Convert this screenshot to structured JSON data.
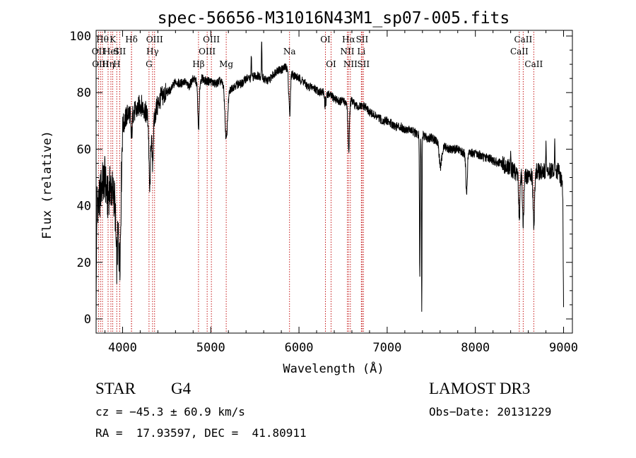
{
  "chart_data": {
    "type": "line",
    "title": "spec-56656-M31016N43M1_sp07-005.fits",
    "xlabel": "Wavelength (Å)",
    "ylabel": "Flux (relative)",
    "xlim": [
      3700,
      9100
    ],
    "ylim": [
      -5,
      102
    ],
    "x_ticks": [
      4000,
      5000,
      6000,
      7000,
      8000,
      9000
    ],
    "y_ticks": [
      0,
      20,
      40,
      60,
      80,
      100
    ],
    "spectrum_anchors": [
      [
        3700,
        45
      ],
      [
        3730,
        40
      ],
      [
        3760,
        47
      ],
      [
        3800,
        50
      ],
      [
        3830,
        42
      ],
      [
        3860,
        47
      ],
      [
        3900,
        44
      ],
      [
        3930,
        40
      ],
      [
        3960,
        40
      ],
      [
        3980,
        46
      ],
      [
        4000,
        68
      ],
      [
        4050,
        72
      ],
      [
        4100,
        74
      ],
      [
        4150,
        73
      ],
      [
        4200,
        76
      ],
      [
        4250,
        74
      ],
      [
        4300,
        70
      ],
      [
        4340,
        67
      ],
      [
        4380,
        74
      ],
      [
        4430,
        78
      ],
      [
        4500,
        80
      ],
      [
        4550,
        81
      ],
      [
        4600,
        84
      ],
      [
        4650,
        83
      ],
      [
        4700,
        84
      ],
      [
        4750,
        82
      ],
      [
        4800,
        85
      ],
      [
        4860,
        83
      ],
      [
        4900,
        85
      ],
      [
        4950,
        84
      ],
      [
        5000,
        84
      ],
      [
        5050,
        83
      ],
      [
        5100,
        84
      ],
      [
        5150,
        83
      ],
      [
        5200,
        80
      ],
      [
        5250,
        82
      ],
      [
        5300,
        83
      ],
      [
        5350,
        83
      ],
      [
        5400,
        85
      ],
      [
        5450,
        85
      ],
      [
        5500,
        86
      ],
      [
        5550,
        86
      ],
      [
        5600,
        85
      ],
      [
        5650,
        84
      ],
      [
        5700,
        86
      ],
      [
        5750,
        88
      ],
      [
        5800,
        88
      ],
      [
        5850,
        89
      ],
      [
        5900,
        87
      ],
      [
        5950,
        86
      ],
      [
        6000,
        85
      ],
      [
        6050,
        84
      ],
      [
        6100,
        82
      ],
      [
        6150,
        82
      ],
      [
        6200,
        81
      ],
      [
        6250,
        80
      ],
      [
        6300,
        80
      ],
      [
        6350,
        79
      ],
      [
        6400,
        78
      ],
      [
        6450,
        77
      ],
      [
        6500,
        77
      ],
      [
        6560,
        76
      ],
      [
        6600,
        77
      ],
      [
        6650,
        75
      ],
      [
        6700,
        75
      ],
      [
        6750,
        75
      ],
      [
        6800,
        73
      ],
      [
        6850,
        72
      ],
      [
        6900,
        71
      ],
      [
        6950,
        70
      ],
      [
        7000,
        70
      ],
      [
        7050,
        69
      ],
      [
        7100,
        68
      ],
      [
        7150,
        68
      ],
      [
        7200,
        67
      ],
      [
        7250,
        67
      ],
      [
        7300,
        66
      ],
      [
        7350,
        65
      ],
      [
        7400,
        65
      ],
      [
        7450,
        64
      ],
      [
        7500,
        64
      ],
      [
        7550,
        63
      ],
      [
        7600,
        62
      ],
      [
        7650,
        61
      ],
      [
        7700,
        60
      ],
      [
        7750,
        60
      ],
      [
        7800,
        60
      ],
      [
        7850,
        59
      ],
      [
        7900,
        58
      ],
      [
        7950,
        59
      ],
      [
        8000,
        58
      ],
      [
        8050,
        58
      ],
      [
        8100,
        57
      ],
      [
        8150,
        57
      ],
      [
        8200,
        56
      ],
      [
        8250,
        55
      ],
      [
        8300,
        55
      ],
      [
        8350,
        54
      ],
      [
        8400,
        53
      ],
      [
        8450,
        52
      ],
      [
        8500,
        52
      ],
      [
        8550,
        51
      ],
      [
        8600,
        50
      ],
      [
        8650,
        51
      ],
      [
        8700,
        52
      ],
      [
        8750,
        52
      ],
      [
        8800,
        52
      ],
      [
        8850,
        52
      ],
      [
        8900,
        53
      ],
      [
        8950,
        52
      ],
      [
        8980,
        48
      ],
      [
        9000,
        44
      ]
    ],
    "absorption_features": [
      {
        "wl": 3700,
        "depth": 42,
        "width": 4
      },
      {
        "wl": 3934,
        "depth": 20,
        "width": 10
      },
      {
        "wl": 3968,
        "depth": 22,
        "width": 10
      },
      {
        "wl": 4101,
        "depth": 10,
        "width": 8
      },
      {
        "wl": 4308,
        "depth": 24,
        "width": 8
      },
      {
        "wl": 4340,
        "depth": 12,
        "width": 8
      },
      {
        "wl": 4861,
        "depth": 16,
        "width": 8
      },
      {
        "wl": 5175,
        "depth": 18,
        "width": 14
      },
      {
        "wl": 5893,
        "depth": 20,
        "width": 8
      },
      {
        "wl": 6300,
        "depth": 10,
        "width": 6
      },
      {
        "wl": 6563,
        "depth": 17,
        "width": 8
      },
      {
        "wl": 7370,
        "depth": 50,
        "width": 4
      },
      {
        "wl": 7392,
        "depth": 64,
        "width": 3
      },
      {
        "wl": 7605,
        "depth": 8,
        "width": 14
      },
      {
        "wl": 7900,
        "depth": 14,
        "width": 8
      },
      {
        "wl": 8498,
        "depth": 16,
        "width": 8
      },
      {
        "wl": 8542,
        "depth": 18,
        "width": 8
      },
      {
        "wl": 8662,
        "depth": 18,
        "width": 8
      },
      {
        "wl": 9000,
        "depth": 40,
        "width": 4
      }
    ],
    "emission_features": [
      {
        "wl": 5577,
        "height": 14,
        "width": 3
      },
      {
        "wl": 5890,
        "height": 8,
        "width": 4
      },
      {
        "wl": 6300,
        "height": 8,
        "width": 3
      },
      {
        "wl": 5460,
        "height": 8,
        "width": 3
      },
      {
        "wl": 8400,
        "height": 8,
        "width": 3
      },
      {
        "wl": 8800,
        "height": 10,
        "width": 3
      },
      {
        "wl": 8900,
        "height": 8,
        "width": 3
      }
    ],
    "line_markers": [
      {
        "wl": 3727,
        "label": "OII",
        "row": 1
      },
      {
        "wl": 3750,
        "label": "OIII",
        "row": 2
      },
      {
        "wl": 3772,
        "label": "Hθ",
        "row": 0
      },
      {
        "wl": 3836,
        "label": "Hη",
        "row": 2
      },
      {
        "wl": 3868,
        "label": "HeI",
        "row": 1
      },
      {
        "wl": 3889,
        "label": "K",
        "row": 0
      },
      {
        "wl": 3934,
        "label": "H",
        "row": 2
      },
      {
        "wl": 3968,
        "label": "SII",
        "row": 1
      },
      {
        "wl": 4101,
        "label": "Hδ",
        "row": 0
      },
      {
        "wl": 4102,
        "label": "",
        "row": 0
      },
      {
        "wl": 4300,
        "label": "G",
        "row": 2
      },
      {
        "wl": 4340,
        "label": "Hγ",
        "row": 1
      },
      {
        "wl": 4363,
        "label": "OIII",
        "row": 0
      },
      {
        "wl": 4861,
        "label": "Hβ",
        "row": 2
      },
      {
        "wl": 4959,
        "label": "OIII",
        "row": 1
      },
      {
        "wl": 5007,
        "label": "OIII",
        "row": 0
      },
      {
        "wl": 5175,
        "label": "Mg",
        "row": 2
      },
      {
        "wl": 5893,
        "label": "Na",
        "row": 1
      },
      {
        "wl": 6300,
        "label": "OI",
        "row": 0
      },
      {
        "wl": 6364,
        "label": "OI",
        "row": 2
      },
      {
        "wl": 6548,
        "label": "NII",
        "row": 1
      },
      {
        "wl": 6563,
        "label": "Hα",
        "row": 0
      },
      {
        "wl": 6583,
        "label": "NII",
        "row": 2
      },
      {
        "wl": 6707,
        "label": "Li",
        "row": 1
      },
      {
        "wl": 6716,
        "label": "SII",
        "row": 0
      },
      {
        "wl": 6731,
        "label": "SII",
        "row": 2
      },
      {
        "wl": 8498,
        "label": "CaII",
        "row": 1
      },
      {
        "wl": 8542,
        "label": "CaII",
        "row": 0
      },
      {
        "wl": 8662,
        "label": "CaII",
        "row": 2
      }
    ]
  },
  "info": {
    "object_class": "STAR",
    "subclass": "G4",
    "survey": "LAMOST DR3",
    "cz": "cz = −45.3 ± 60.9 km/s",
    "obs_date": "Obs−Date: 20131229",
    "coords": "RA =  17.93597, DEC =  41.80911"
  }
}
